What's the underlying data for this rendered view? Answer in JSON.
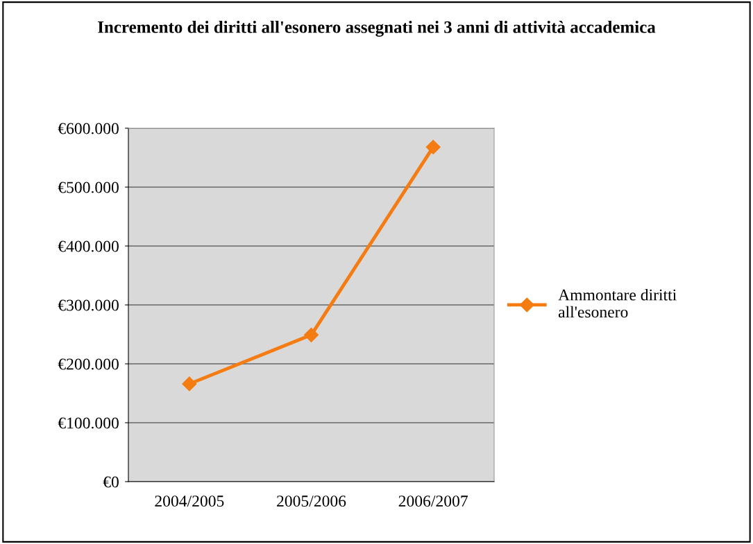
{
  "chart_data": {
    "type": "line",
    "title": "Incremento dei diritti all'esonero assegnati nei 3 anni di attività accademica",
    "categories": [
      "2004/2005",
      "2005/2006",
      "2006/2007"
    ],
    "series": [
      {
        "name": "Ammontare diritti all'esonero",
        "color": "#f47c12",
        "values": [
          166000,
          249000,
          568000
        ]
      }
    ],
    "ylim": [
      0,
      600000
    ],
    "yticks": [
      {
        "value": 0,
        "label": "€0"
      },
      {
        "value": 100000,
        "label": "€100.000"
      },
      {
        "value": 200000,
        "label": "€200.000"
      },
      {
        "value": 300000,
        "label": "€300.000"
      },
      {
        "value": 400000,
        "label": "€400.000"
      },
      {
        "value": 500000,
        "label": "€500.000"
      },
      {
        "value": 600000,
        "label": "€600.000"
      }
    ],
    "grid": "y",
    "legend": "right",
    "marker": "diamond"
  }
}
